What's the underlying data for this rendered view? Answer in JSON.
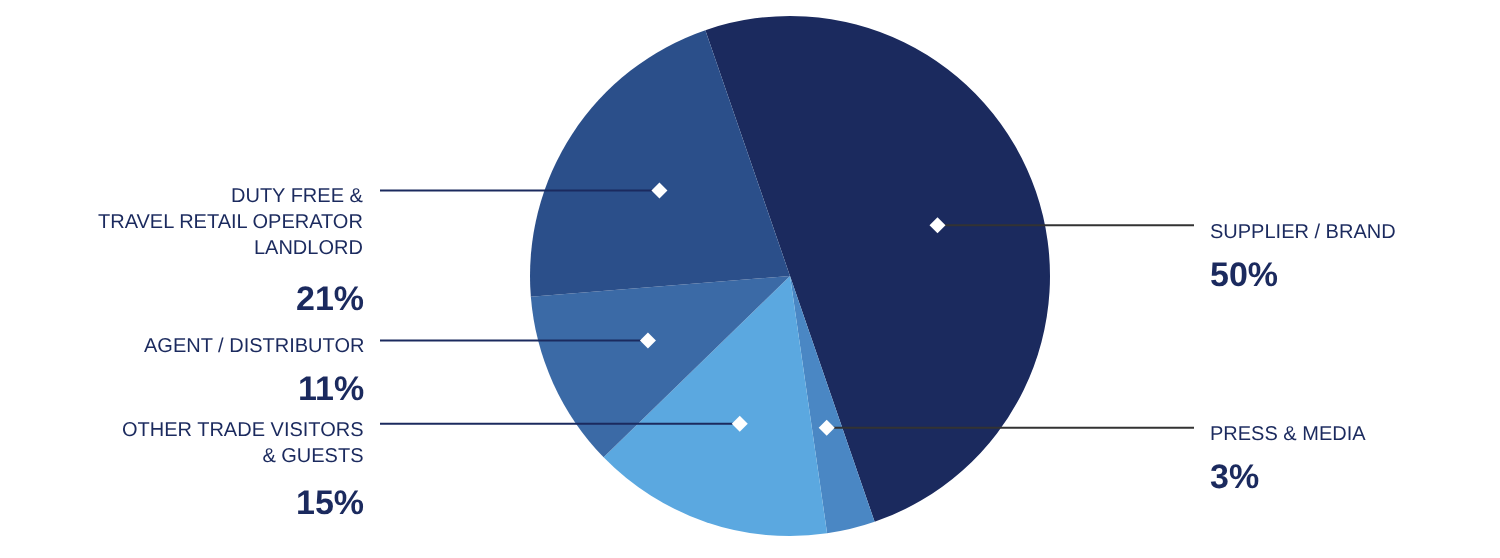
{
  "chart_data": {
    "type": "pie",
    "categories": [
      "SUPPLIER / BRAND",
      "PRESS & MEDIA",
      "OTHER TRADE VISITORS\n& GUESTS",
      "AGENT / DISTRIBUTOR",
      "DUTY FREE &\nTRAVEL RETAIL OPERATOR\nLANDLORD"
    ],
    "values": [
      50,
      3,
      15,
      11,
      21
    ],
    "value_labels": [
      "50%",
      "3%",
      "15%",
      "11%",
      "21%"
    ],
    "colors": [
      "#1b2a5e",
      "#4a87c4",
      "#5ba8e0",
      "#3b6aa6",
      "#2b4f8a"
    ],
    "legend": false
  }
}
